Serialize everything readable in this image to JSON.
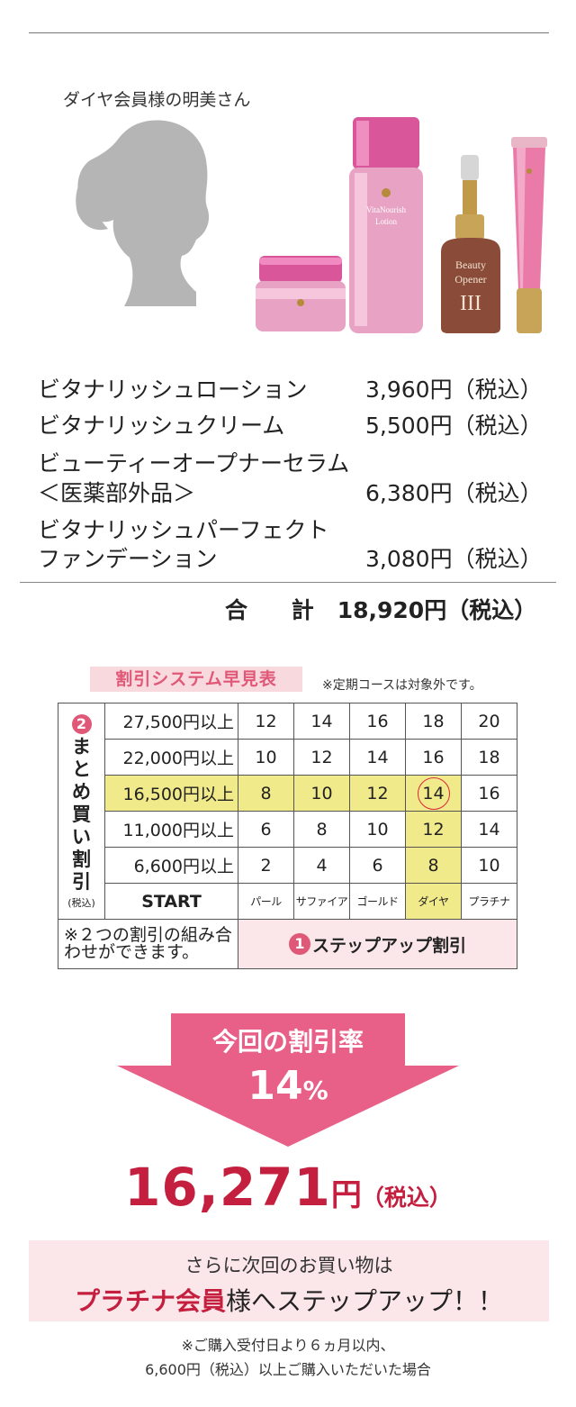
{
  "persona": "ダイヤ会員様の明美さん",
  "products": [
    {
      "name": "ビタナリッシュローション",
      "price": "3,960円（税込）"
    },
    {
      "name": "ビタナリッシュクリーム",
      "price": "5,500円（税込）"
    },
    {
      "name_l1": "ビューティーオープナーセラム",
      "name_l2": "＜医薬部外品＞",
      "price": "6,380円（税込）"
    },
    {
      "name_l1": "ビタナリッシュパーフェクト",
      "name_l2": "ファンデーション",
      "price": "3,080円（税込）"
    }
  ],
  "bottle_labels": {
    "lotion_l1": "VitaNourish",
    "lotion_l2": "Lotion",
    "serum_l1": "Beauty",
    "serum_l2": "Opener",
    "serum_mark": "III"
  },
  "total": {
    "label": "合 計",
    "value": "18,920円（税込）"
  },
  "table": {
    "title": "割引システム早見表",
    "note": "※定期コースは対象外です。",
    "side_badge": "2",
    "side_chars": [
      "ま",
      "と",
      "め",
      "買",
      "い",
      "割",
      "引"
    ],
    "side_small": "(税込)",
    "rows": [
      {
        "threshold": "27,500円以上",
        "values": [
          "12",
          "14",
          "16",
          "18",
          "20"
        ]
      },
      {
        "threshold": "22,000円以上",
        "values": [
          "10",
          "12",
          "14",
          "16",
          "18"
        ]
      },
      {
        "threshold": "16,500円以上",
        "values": [
          "8",
          "10",
          "12",
          "14",
          "16"
        ]
      },
      {
        "threshold": "11,000円以上",
        "values": [
          "6",
          "8",
          "10",
          "12",
          "14"
        ]
      },
      {
        "threshold": "6,600円以上",
        "values": [
          "2",
          "4",
          "6",
          "8",
          "10"
        ]
      }
    ],
    "start_label": "START",
    "levels": [
      "パール",
      "サファイア",
      "ゴールド",
      "ダイヤ",
      "プラチナ"
    ],
    "combo_note": "※２つの割引の組み合わせができます。",
    "stepup_badge": "1",
    "stepup_label": "ステップアップ割引"
  },
  "result": {
    "title": "今回の割引率",
    "rate": "14",
    "rate_unit": "%",
    "final_number": "16,271",
    "final_unit": "円",
    "final_tax": "（税込）"
  },
  "next": {
    "line1": "さらに次回のお買い物は",
    "em": "プラチナ会員",
    "rest": "様へステップアップ！！"
  },
  "bottom_note": {
    "line1": "※ご購入受付日より６ヵ月以内、",
    "line2": "6,600円（税込）以上ご購入いただいた場合"
  },
  "colors": {
    "accent": "#e05877",
    "final_red": "#c41f3e",
    "highlight": "#f1ea8a",
    "pink_bg": "#fbe6ea"
  }
}
